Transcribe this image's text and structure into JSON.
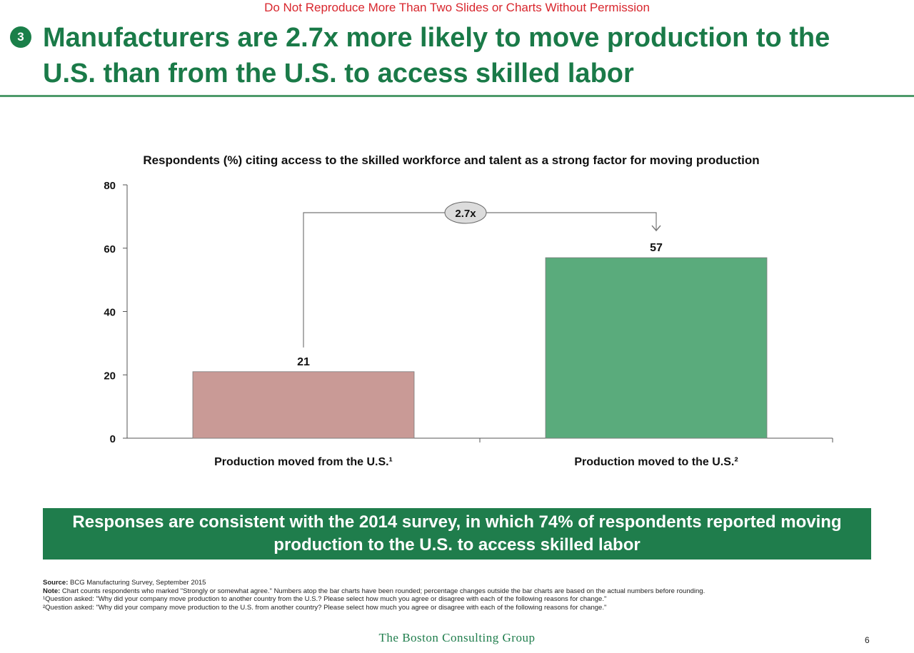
{
  "header": {
    "notice": "Do Not Reproduce More Than Two Slides or Charts Without Permission",
    "badge": "3",
    "title": "Manufacturers are 2.7x more likely to move production to the U.S. than from the U.S. to access skilled labor"
  },
  "chart_data": {
    "type": "bar",
    "title": "Respondents (%) citing access to the skilled workforce and talent as a strong factor for moving production",
    "categories": [
      "Production moved from the U.S.¹",
      "Production moved to the U.S.²"
    ],
    "values": [
      21,
      57
    ],
    "value_labels": [
      "21",
      "57"
    ],
    "colors": [
      "#c99a96",
      "#5aab7c"
    ],
    "ylim": [
      0,
      80
    ],
    "yticks": [
      0,
      20,
      40,
      60,
      80
    ],
    "grid": false,
    "annotation": "2.7x"
  },
  "callout": {
    "text": "Responses are consistent with the 2014 survey, in which 74% of respondents reported moving production to the U.S. to access skilled labor"
  },
  "footnotes": {
    "source_label": "Source:",
    "source_text": "BCG Manufacturing Survey, September 2015",
    "note_label": "Note:",
    "note_text": "Chart counts respondents who marked \"Strongly or somewhat agree.\" Numbers atop the bar charts have been rounded; percentage changes outside the bar charts are based on the actual numbers before rounding.",
    "q1": "¹Question asked: \"Why did your company move production to another country from the U.S.? Please select how much you agree or disagree with each of the following reasons for change.\"",
    "q2": "²Question asked: \"Why did your company move production to the U.S. from another country? Please select how much you agree or disagree with each of the following reasons for change.\""
  },
  "footer": {
    "brand": "The Boston Consulting Group",
    "page": "6"
  }
}
